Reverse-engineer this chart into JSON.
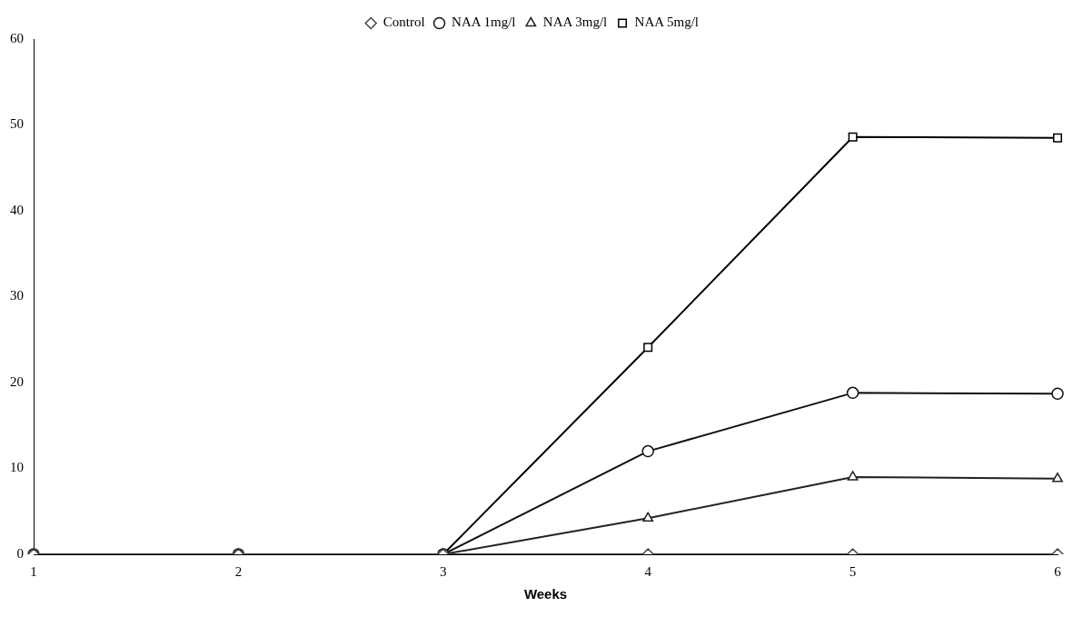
{
  "chart_data": {
    "type": "line",
    "xlabel": "Weeks",
    "categories": [
      "1",
      "2",
      "3",
      "4",
      "5",
      "6"
    ],
    "series": [
      {
        "name": "Control",
        "color": "#444444",
        "marker": "diamond",
        "values": [
          0,
          0,
          0,
          0,
          0,
          0
        ]
      },
      {
        "name": "NAA 1mg/l",
        "color": "#111111",
        "marker": "circle",
        "values": [
          0,
          0,
          0,
          12,
          18.8,
          18.7
        ]
      },
      {
        "name": "NAA 3mg/l",
        "color": "#222222",
        "marker": "triangle",
        "values": [
          0,
          0,
          0,
          4.2,
          9,
          8.8
        ]
      },
      {
        "name": "NAA 5mg/l",
        "color": "#000000",
        "marker": "square",
        "values": [
          0,
          0,
          0,
          24.1,
          48.6,
          48.5
        ]
      }
    ],
    "ylim": [
      0,
      60
    ],
    "yticks": [
      0,
      10,
      20,
      30,
      40,
      50,
      60
    ],
    "grid": false,
    "legend": "top",
    "line_style": "solid"
  }
}
